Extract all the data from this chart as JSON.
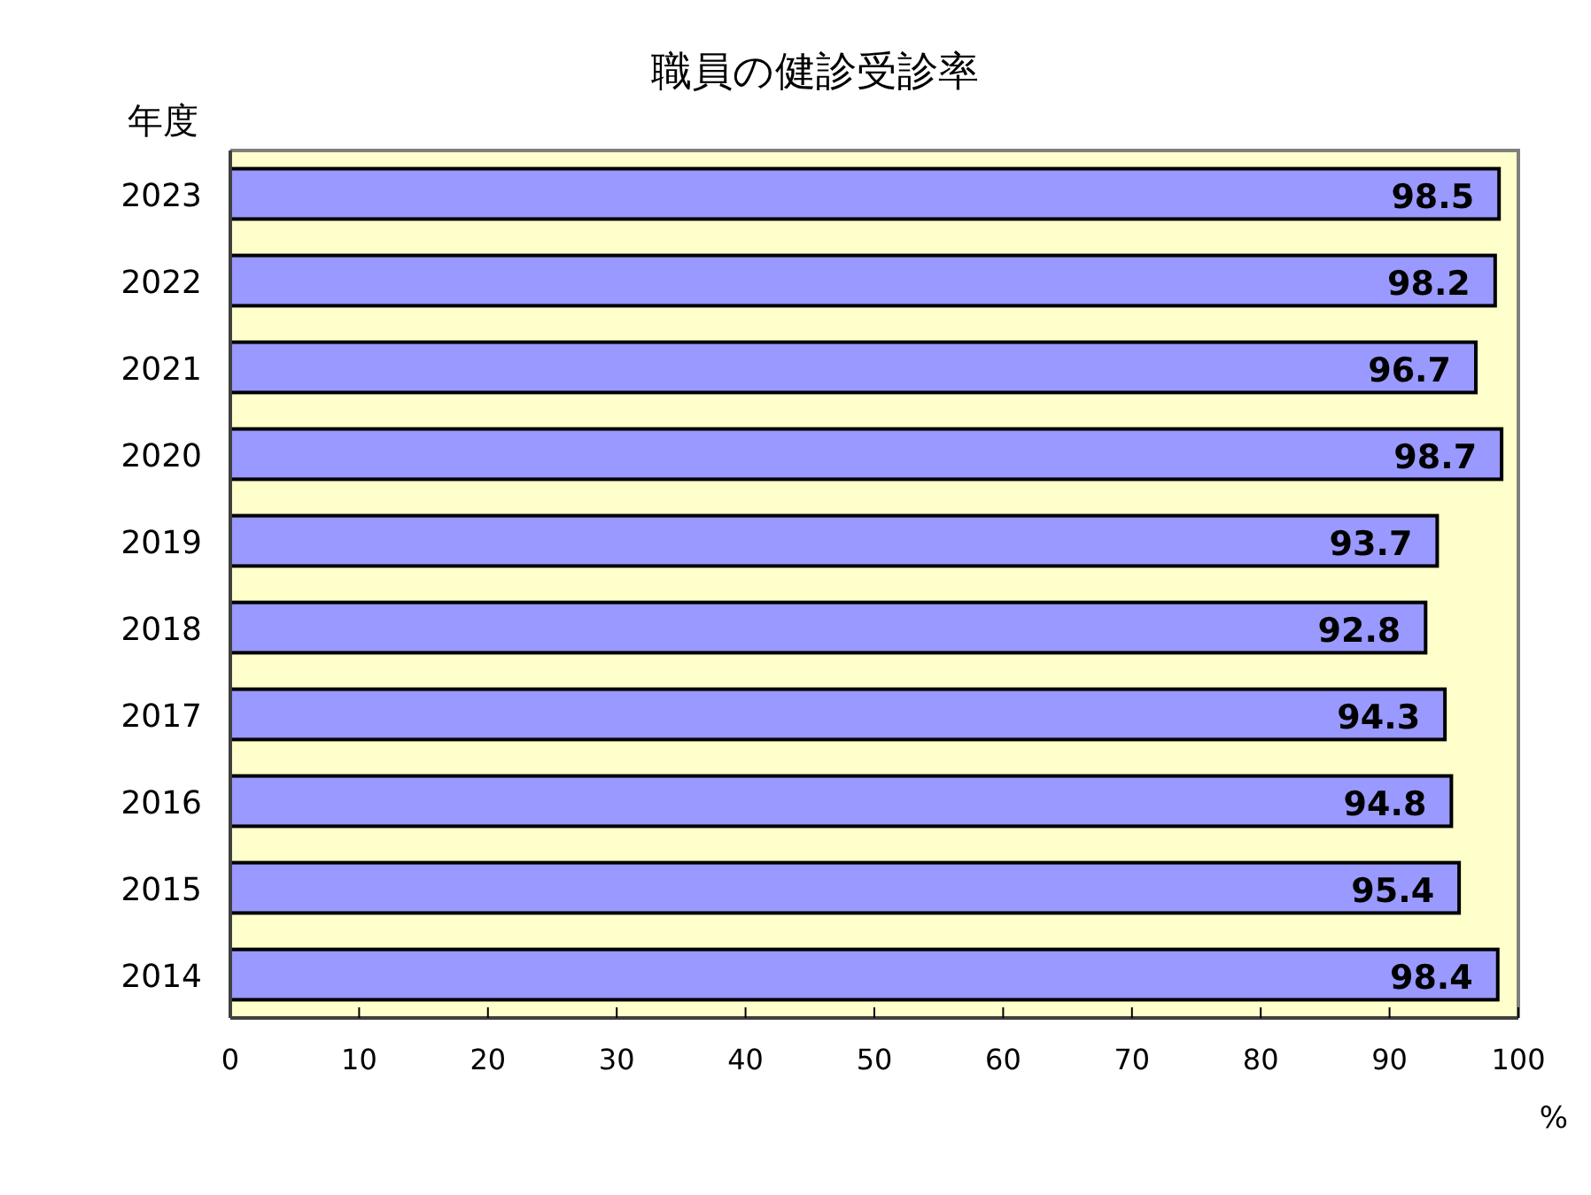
{
  "chart_data": {
    "type": "bar",
    "orientation": "horizontal",
    "title": "職員の健診受診率",
    "xlabel": "%",
    "ylabel": "年度",
    "categories": [
      "2023",
      "2022",
      "2021",
      "2020",
      "2019",
      "2018",
      "2017",
      "2016",
      "2015",
      "2014"
    ],
    "values": [
      98.5,
      98.2,
      96.7,
      98.7,
      93.7,
      92.8,
      94.3,
      94.8,
      95.4,
      98.4
    ],
    "color": "#9999ff",
    "xlim": [
      0,
      100
    ],
    "xticks": [
      0,
      10,
      20,
      30,
      40,
      50,
      60,
      70,
      80,
      90,
      100
    ],
    "data_labels": true,
    "grid": false,
    "bands": [
      {
        "axis": "x",
        "from": 0,
        "to": 100,
        "color": "#ffffcc"
      }
    ]
  }
}
